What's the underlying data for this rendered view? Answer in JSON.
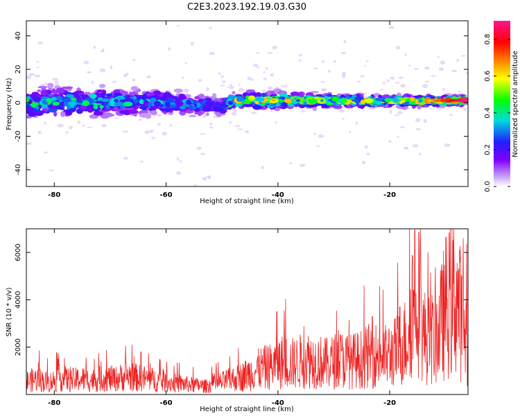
{
  "title": "C2E3.2023.192.19.03.G30",
  "chart_data": [
    {
      "type": "heatmap",
      "xlabel": "Height of straight line (km)",
      "ylabel": "Frequency (Hz)",
      "xlim": [
        -85,
        -6
      ],
      "ylim": [
        -50,
        49
      ],
      "xticks": [
        -80,
        -60,
        -40,
        -20
      ],
      "yticks": [
        -40,
        -20,
        0,
        20,
        40
      ],
      "colorbar": {
        "label": "Normalized spectral amplitude",
        "range": [
          0.0,
          0.9
        ],
        "ticks": [
          0.0,
          0.2,
          0.4,
          0.6,
          0.8
        ]
      },
      "colormap_hex": [
        "#e8d2f8",
        "#8000ff",
        "#2020ff",
        "#00e0e0",
        "#00ff00",
        "#ffff00",
        "#ff8000",
        "#ff0000",
        "#ff1493"
      ],
      "band_center_hz": [
        {
          "x": -85,
          "y": 0.5
        },
        {
          "x": -70,
          "y": 0.5
        },
        {
          "x": -60,
          "y": 0
        },
        {
          "x": -50,
          "y": -2
        },
        {
          "x": -48,
          "y": 1.5
        },
        {
          "x": -35,
          "y": 1.5
        },
        {
          "x": -20,
          "y": 1
        },
        {
          "x": -6,
          "y": 1.5
        }
      ],
      "band_halfwidth_hz": [
        {
          "x": -85,
          "y": 12
        },
        {
          "x": -60,
          "y": 10
        },
        {
          "x": -50,
          "y": 7
        },
        {
          "x": -30,
          "y": 5
        },
        {
          "x": -15,
          "y": 4
        },
        {
          "x": -6,
          "y": 3
        }
      ],
      "band_peak_amplitude": [
        {
          "x": -85,
          "y": 0.45
        },
        {
          "x": -60,
          "y": 0.35
        },
        {
          "x": -50,
          "y": 0.3
        },
        {
          "x": -47,
          "y": 0.55
        },
        {
          "x": -35,
          "y": 0.6
        },
        {
          "x": -20,
          "y": 0.55
        },
        {
          "x": -10,
          "y": 0.75
        },
        {
          "x": -6,
          "y": 0.9
        }
      ]
    },
    {
      "type": "line",
      "xlabel": "Height of straight line (km)",
      "ylabel": "SNR (10 * v/v)",
      "xlim": [
        -85,
        -6
      ],
      "ylim": [
        0,
        7000
      ],
      "xticks": [
        -80,
        -60,
        -40,
        -20
      ],
      "yticks": [
        2000,
        4000,
        6000
      ],
      "line_color": "#ee2222",
      "series": [
        {
          "values_xy": [
            [
              -85,
              550
            ],
            [
              -83,
              650
            ],
            [
              -81,
              500
            ],
            [
              -79,
              700
            ],
            [
              -77,
              600
            ],
            [
              -75,
              650
            ],
            [
              -73,
              600
            ],
            [
              -71,
              700
            ],
            [
              -69,
              650
            ],
            [
              -67,
              800
            ],
            [
              -65,
              700
            ],
            [
              -63,
              650
            ],
            [
              -61,
              550
            ],
            [
              -59,
              500
            ],
            [
              -57,
              450
            ],
            [
              -55,
              400
            ],
            [
              -53,
              350
            ],
            [
              -51,
              450
            ],
            [
              -49,
              600
            ],
            [
              -47,
              700
            ],
            [
              -45,
              900
            ],
            [
              -43,
              1100
            ],
            [
              -41,
              1200
            ],
            [
              -39,
              1400
            ],
            [
              -37,
              1300
            ],
            [
              -35,
              1500
            ],
            [
              -33,
              1400
            ],
            [
              -31,
              1300
            ],
            [
              -29,
              1500
            ],
            [
              -27,
              1400
            ],
            [
              -25,
              1500
            ],
            [
              -23,
              1700
            ],
            [
              -21,
              1600
            ],
            [
              -19,
              1800
            ],
            [
              -17,
              2300
            ],
            [
              -16,
              3800
            ],
            [
              -15,
              4500
            ],
            [
              -14,
              2500
            ],
            [
              -13,
              2300
            ],
            [
              -12,
              2400
            ],
            [
              -11,
              2800
            ],
            [
              -10,
              3700
            ],
            [
              -9,
              4000
            ],
            [
              -8,
              4200
            ],
            [
              -7,
              3000
            ],
            [
              -6,
              2200
            ]
          ],
          "spikes": [
            {
              "x": -64.5,
              "y": 1800
            },
            {
              "x": -40.2,
              "y": 3500
            },
            {
              "x": -23.1,
              "y": 3300
            },
            {
              "x": -18.2,
              "y": 3700
            },
            {
              "x": -15.5,
              "y": 6950
            },
            {
              "x": -14.8,
              "y": 6850
            },
            {
              "x": -8.5,
              "y": 5600
            }
          ]
        }
      ]
    }
  ]
}
